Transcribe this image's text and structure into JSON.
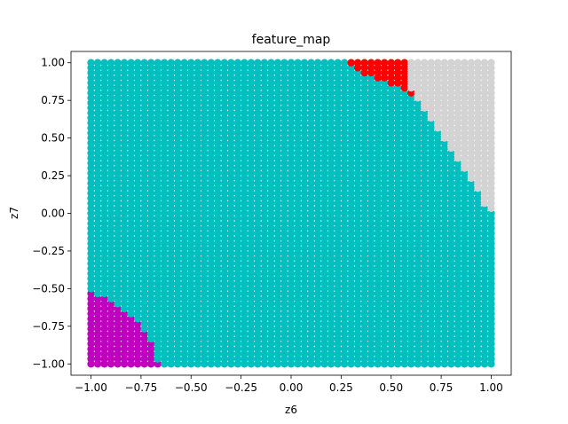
{
  "chart_data": {
    "type": "scatter",
    "title": "feature_map",
    "xlabel": "z6",
    "ylabel": "z7",
    "xlim": [
      -1.1,
      1.1
    ],
    "ylim": [
      -1.075,
      1.075
    ],
    "xticks": [
      -1.0,
      -0.75,
      -0.5,
      -0.25,
      0.0,
      0.25,
      0.5,
      0.75,
      1.0
    ],
    "yticks": [
      -1.0,
      -0.75,
      -0.5,
      -0.25,
      0.0,
      0.25,
      0.5,
      0.75,
      1.0
    ],
    "xtick_labels": [
      "−1.00",
      "−0.75",
      "−0.50",
      "−0.25",
      "0.00",
      "0.25",
      "0.50",
      "0.75",
      "1.00"
    ],
    "ytick_labels": [
      "−1.00",
      "−0.75",
      "−0.50",
      "−0.25",
      "0.00",
      "0.25",
      "0.50",
      "0.75",
      "1.00"
    ],
    "grid": false,
    "grid_points_per_axis": 61,
    "default_color": "#00bfbf",
    "regions": [
      {
        "color": "#bf00bf",
        "polygon": [
          [
            -1.02,
            -1.02
          ],
          [
            -1.02,
            -0.52
          ],
          [
            -0.95,
            -0.54
          ],
          [
            -0.86,
            -0.62
          ],
          [
            -0.79,
            -0.7
          ],
          [
            -0.73,
            -0.78
          ],
          [
            -0.7,
            -0.86
          ],
          [
            -0.67,
            -0.94
          ],
          [
            -0.66,
            -1.02
          ]
        ]
      },
      {
        "color": "#ff0000",
        "polygon": [
          [
            0.26,
            1.02
          ],
          [
            0.58,
            1.02
          ],
          [
            0.58,
            0.84
          ],
          [
            0.65,
            0.76
          ],
          [
            0.61,
            0.76
          ],
          [
            0.56,
            0.82
          ],
          [
            0.45,
            0.88
          ],
          [
            0.35,
            0.93
          ]
        ]
      },
      {
        "color": "#d3d3d3",
        "polygon": [
          [
            0.58,
            1.02
          ],
          [
            1.02,
            1.02
          ],
          [
            1.02,
            0.0
          ],
          [
            0.97,
            0.04
          ],
          [
            0.93,
            0.15
          ],
          [
            0.88,
            0.25
          ],
          [
            0.82,
            0.37
          ],
          [
            0.76,
            0.5
          ],
          [
            0.7,
            0.62
          ],
          [
            0.64,
            0.75
          ],
          [
            0.58,
            0.84
          ]
        ]
      }
    ]
  }
}
